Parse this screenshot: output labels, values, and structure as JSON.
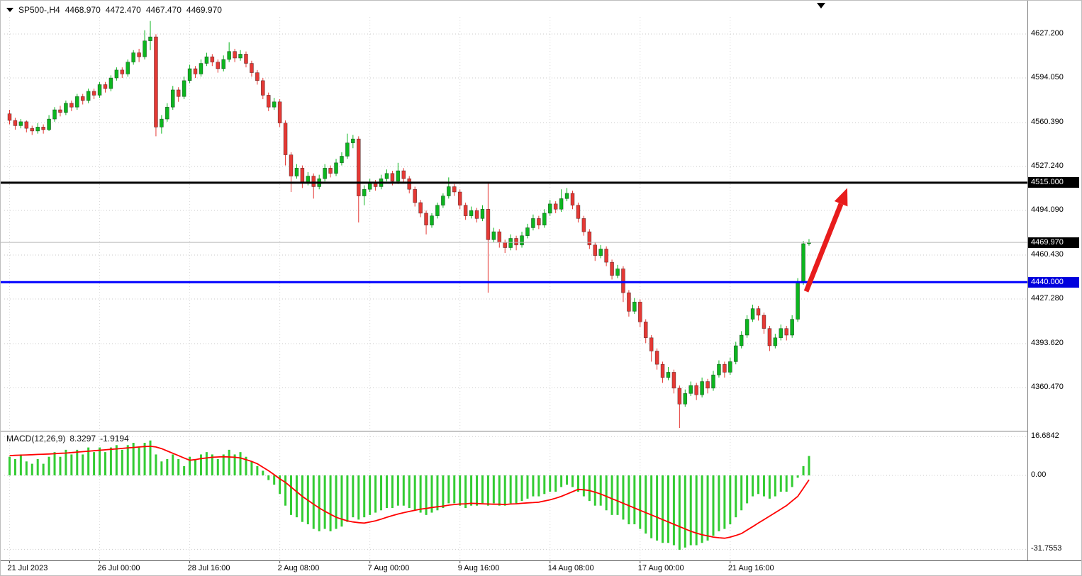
{
  "header": {
    "symbol_period": "SP500-,H4",
    "open": "4468.970",
    "high": "4472.470",
    "low": "4467.470",
    "close": "4469.970"
  },
  "macd": {
    "name": "MACD(12,26,9)",
    "value": "8.3297",
    "signal": "-1.9194"
  },
  "colors": {
    "candle_up": "#0cb51f",
    "candle_down": "#e53935",
    "macd_hist": "#33cc33",
    "macd_signal": "#ff0000",
    "grid": "#c9c9c9",
    "vgrid": "#d8d8d8",
    "resistance_line": "#000000",
    "support_line": "#0000ff",
    "current_price_line": "#b8b8b8",
    "arrow": "#e81c1c",
    "separator": "#808080",
    "axis_separator": "#5a5a5a",
    "badge_black": "#000000",
    "badge_blue": "#0000dd"
  },
  "price_axis": [
    {
      "label": "4627.200",
      "price": 4627.2
    },
    {
      "label": "4594.050",
      "price": 4594.05
    },
    {
      "label": "4560.390",
      "price": 4560.39
    },
    {
      "label": "4527.240",
      "price": 4527.24
    },
    {
      "label": "4515.000",
      "price": 4515.0,
      "badge_bg": "#000000",
      "line_color": "#000000",
      "line_width": 3
    },
    {
      "label": "4494.090",
      "price": 4494.09
    },
    {
      "label": "4469.970",
      "price": 4469.97,
      "badge_bg": "#000000",
      "line_color": "#b8b8b8",
      "line_width": 1
    },
    {
      "label": "4460.430",
      "price": 4460.43
    },
    {
      "label": "4440.000",
      "price": 4440.0,
      "badge_bg": "#0000dd",
      "line_color": "#0000ff",
      "line_width": 3
    },
    {
      "label": "4427.280",
      "price": 4427.28
    },
    {
      "label": "4393.620",
      "price": 4393.62
    },
    {
      "label": "4360.470",
      "price": 4360.47
    }
  ],
  "macd_axis": [
    {
      "label": "16.6842",
      "value": 16.6842
    },
    {
      "label": "0.00",
      "value": 0
    },
    {
      "label": "-31.7553",
      "value": -31.7553
    }
  ],
  "time_axis": [
    {
      "label": "21 Jul 2023",
      "bar": 0
    },
    {
      "label": "26 Jul 00:00",
      "bar": 16
    },
    {
      "label": "28 Jul 16:00",
      "bar": 32
    },
    {
      "label": "2 Aug 08:00",
      "bar": 48
    },
    {
      "label": "7 Aug 00:00",
      "bar": 64
    },
    {
      "label": "9 Aug 16:00",
      "bar": 80
    },
    {
      "label": "14 Aug 08:00",
      "bar": 96
    },
    {
      "label": "17 Aug 00:00",
      "bar": 112
    },
    {
      "label": "21 Aug 16:00",
      "bar": 128
    }
  ],
  "chart_data": {
    "type": "candlestick",
    "symbol": "SP500-",
    "timeframe": "H4",
    "title": "SP500-,H4 4468.970 4472.470 4467.470 4469.970",
    "last_ohlc": {
      "open": 4468.97,
      "high": 4472.47,
      "low": 4467.47,
      "close": 4469.97
    },
    "y_ticks": [
      4627.2,
      4594.05,
      4560.39,
      4527.24,
      4515.0,
      4494.09,
      4469.97,
      4460.43,
      4440.0,
      4427.28,
      4393.62,
      4360.47
    ],
    "x_ticks": [
      "21 Jul 2023",
      "26 Jul 00:00",
      "28 Jul 16:00",
      "2 Aug 08:00",
      "7 Aug 00:00",
      "9 Aug 16:00",
      "14 Aug 08:00",
      "17 Aug 00:00",
      "21 Aug 16:00"
    ],
    "ylim": [
      4330,
      4640
    ],
    "levels": {
      "resistance": 4515.0,
      "support": 4440.0,
      "current_price": 4469.97
    },
    "arrow": {
      "from": {
        "bar": 141.5,
        "price": 4433
      },
      "to": {
        "bar": 148.8,
        "price": 4511
      },
      "color": "#e81c1c",
      "stroke_width": 7
    },
    "candles": [
      [
        4567,
        4570,
        4559,
        4562
      ],
      [
        4562,
        4564,
        4555,
        4558
      ],
      [
        4558,
        4563,
        4556,
        4561
      ],
      [
        4561,
        4562,
        4553,
        4556
      ],
      [
        4556,
        4558,
        4551,
        4554
      ],
      [
        4554,
        4560,
        4552,
        4557
      ],
      [
        4557,
        4559,
        4552,
        4555
      ],
      [
        4555,
        4566,
        4554,
        4563
      ],
      [
        4563,
        4572,
        4561,
        4570
      ],
      [
        4570,
        4573,
        4565,
        4568
      ],
      [
        4568,
        4577,
        4566,
        4575
      ],
      [
        4575,
        4577,
        4569,
        4572
      ],
      [
        4572,
        4582,
        4570,
        4580
      ],
      [
        4580,
        4582,
        4574,
        4577
      ],
      [
        4577,
        4586,
        4575,
        4584
      ],
      [
        4584,
        4586,
        4578,
        4581
      ],
      [
        4581,
        4591,
        4579,
        4589
      ],
      [
        4589,
        4591,
        4583,
        4586
      ],
      [
        4586,
        4596,
        4584,
        4594
      ],
      [
        4594,
        4602,
        4592,
        4600
      ],
      [
        4600,
        4602,
        4594,
        4597
      ],
      [
        4597,
        4608,
        4595,
        4606
      ],
      [
        4606,
        4615,
        4604,
        4613
      ],
      [
        4613,
        4616,
        4606,
        4610
      ],
      [
        4610,
        4630,
        4608,
        4622
      ],
      [
        4622,
        4637,
        4615,
        4625
      ],
      [
        4625,
        4627,
        4550,
        4557
      ],
      [
        4557,
        4566,
        4552,
        4563
      ],
      [
        4563,
        4575,
        4561,
        4572
      ],
      [
        4572,
        4588,
        4570,
        4585
      ],
      [
        4585,
        4587,
        4576,
        4580
      ],
      [
        4580,
        4595,
        4578,
        4592
      ],
      [
        4592,
        4604,
        4590,
        4601
      ],
      [
        4601,
        4603,
        4594,
        4597
      ],
      [
        4597,
        4608,
        4595,
        4605
      ],
      [
        4605,
        4613,
        4603,
        4610
      ],
      [
        4610,
        4612,
        4603,
        4606
      ],
      [
        4606,
        4608,
        4598,
        4601
      ],
      [
        4601,
        4611,
        4599,
        4608
      ],
      [
        4608,
        4621,
        4606,
        4614
      ],
      [
        4614,
        4616,
        4606,
        4609
      ],
      [
        4609,
        4615,
        4607,
        4612
      ],
      [
        4612,
        4614,
        4602,
        4605
      ],
      [
        4605,
        4607,
        4595,
        4598
      ],
      [
        4598,
        4600,
        4589,
        4592
      ],
      [
        4592,
        4594,
        4578,
        4581
      ],
      [
        4581,
        4583,
        4569,
        4572
      ],
      [
        4572,
        4579,
        4570,
        4576
      ],
      [
        4576,
        4578,
        4557,
        4560
      ],
      [
        4560,
        4562,
        4528,
        4536
      ],
      [
        4536,
        4538,
        4508,
        4520
      ],
      [
        4520,
        4529,
        4518,
        4526
      ],
      [
        4526,
        4528,
        4511,
        4515
      ],
      [
        4515,
        4523,
        4513,
        4520
      ],
      [
        4520,
        4522,
        4503,
        4512
      ],
      [
        4512,
        4521,
        4510,
        4518
      ],
      [
        4518,
        4529,
        4516,
        4526
      ],
      [
        4526,
        4528,
        4519,
        4522
      ],
      [
        4522,
        4533,
        4520,
        4530
      ],
      [
        4530,
        4538,
        4528,
        4535
      ],
      [
        4535,
        4552,
        4533,
        4545
      ],
      [
        4545,
        4551,
        4541,
        4548
      ],
      [
        4548,
        4550,
        4485,
        4505
      ],
      [
        4505,
        4513,
        4498,
        4510
      ],
      [
        4510,
        4518,
        4508,
        4515
      ],
      [
        4515,
        4517,
        4509,
        4512
      ],
      [
        4512,
        4521,
        4510,
        4518
      ],
      [
        4518,
        4525,
        4516,
        4522
      ],
      [
        4522,
        4524,
        4513,
        4516
      ],
      [
        4516,
        4530,
        4514,
        4524
      ],
      [
        4524,
        4526,
        4515,
        4518
      ],
      [
        4518,
        4520,
        4507,
        4510
      ],
      [
        4510,
        4512,
        4497,
        4500
      ],
      [
        4500,
        4502,
        4489,
        4492
      ],
      [
        4492,
        4494,
        4476,
        4483
      ],
      [
        4483,
        4492,
        4481,
        4490
      ],
      [
        4490,
        4500,
        4488,
        4498
      ],
      [
        4498,
        4507,
        4496,
        4505
      ],
      [
        4505,
        4519,
        4503,
        4512
      ],
      [
        4512,
        4514,
        4505,
        4508
      ],
      [
        4508,
        4510,
        4495,
        4498
      ],
      [
        4498,
        4500,
        4487,
        4490
      ],
      [
        4490,
        4497,
        4488,
        4494
      ],
      [
        4494,
        4496,
        4485,
        4488
      ],
      [
        4488,
        4498,
        4486,
        4495
      ],
      [
        4495,
        4515,
        4432,
        4472
      ],
      [
        4472,
        4481,
        4470,
        4478
      ],
      [
        4478,
        4480,
        4466,
        4470
      ],
      [
        4470,
        4472,
        4462,
        4466
      ],
      [
        4466,
        4476,
        4464,
        4473
      ],
      [
        4473,
        4475,
        4464,
        4468
      ],
      [
        4468,
        4478,
        4466,
        4475
      ],
      [
        4475,
        4484,
        4473,
        4481
      ],
      [
        4481,
        4491,
        4479,
        4488
      ],
      [
        4488,
        4490,
        4480,
        4483
      ],
      [
        4483,
        4495,
        4481,
        4492
      ],
      [
        4492,
        4502,
        4490,
        4499
      ],
      [
        4499,
        4501,
        4492,
        4495
      ],
      [
        4495,
        4510,
        4493,
        4503
      ],
      [
        4503,
        4511,
        4501,
        4507
      ],
      [
        4507,
        4509,
        4495,
        4498
      ],
      [
        4498,
        4500,
        4485,
        4488
      ],
      [
        4488,
        4490,
        4475,
        4478
      ],
      [
        4478,
        4480,
        4465,
        4468
      ],
      [
        4468,
        4470,
        4456,
        4460
      ],
      [
        4460,
        4468,
        4458,
        4465
      ],
      [
        4465,
        4467,
        4452,
        4455
      ],
      [
        4455,
        4457,
        4442,
        4445
      ],
      [
        4445,
        4453,
        4443,
        4450
      ],
      [
        4450,
        4452,
        4425,
        4432
      ],
      [
        4432,
        4434,
        4414,
        4418
      ],
      [
        4418,
        4428,
        4416,
        4425
      ],
      [
        4425,
        4427,
        4406,
        4410
      ],
      [
        4410,
        4412,
        4394,
        4398
      ],
      [
        4398,
        4400,
        4380,
        4388
      ],
      [
        4388,
        4390,
        4374,
        4378
      ],
      [
        4378,
        4380,
        4364,
        4368
      ],
      [
        4368,
        4376,
        4366,
        4372
      ],
      [
        4372,
        4374,
        4356,
        4360
      ],
      [
        4360,
        4362,
        4330,
        4348
      ],
      [
        4348,
        4359,
        4346,
        4356
      ],
      [
        4356,
        4365,
        4354,
        4362
      ],
      [
        4362,
        4364,
        4351,
        4355
      ],
      [
        4355,
        4368,
        4353,
        4365
      ],
      [
        4365,
        4367,
        4356,
        4360
      ],
      [
        4360,
        4373,
        4358,
        4370
      ],
      [
        4370,
        4381,
        4368,
        4378
      ],
      [
        4378,
        4380,
        4368,
        4372
      ],
      [
        4372,
        4383,
        4370,
        4380
      ],
      [
        4380,
        4395,
        4378,
        4392
      ],
      [
        4392,
        4403,
        4390,
        4400
      ],
      [
        4400,
        4415,
        4398,
        4412
      ],
      [
        4412,
        4423,
        4410,
        4420
      ],
      [
        4420,
        4422,
        4411,
        4415
      ],
      [
        4415,
        4417,
        4401,
        4405
      ],
      [
        4405,
        4407,
        4388,
        4392
      ],
      [
        4392,
        4401,
        4390,
        4398
      ],
      [
        4398,
        4408,
        4396,
        4405
      ],
      [
        4405,
        4407,
        4396,
        4400
      ],
      [
        4400,
        4415,
        4398,
        4412
      ],
      [
        4412,
        4443,
        4410,
        4440
      ],
      [
        4440,
        4471,
        4438,
        4469
      ],
      [
        4468.97,
        4472.47,
        4467.47,
        4469.97
      ]
    ],
    "macd": {
      "params": "12,26,9",
      "macd_value": 8.3297,
      "signal_value": -1.9194,
      "y_ticks": [
        16.6842,
        0,
        -31.7553
      ],
      "hist": [
        8,
        7,
        9,
        6,
        5,
        7,
        5,
        8,
        10,
        8,
        11,
        9,
        11,
        9,
        12,
        10,
        12,
        10,
        12,
        13,
        11,
        13,
        14,
        12,
        14,
        15,
        9,
        6,
        7,
        9,
        7,
        4,
        8,
        7,
        9,
        10,
        9,
        7,
        9,
        11,
        9,
        10,
        8,
        6,
        4,
        2,
        -2,
        -4,
        -8,
        -13,
        -17,
        -18,
        -20,
        -21,
        -23,
        -24,
        -23,
        -24,
        -23,
        -22,
        -20,
        -18,
        -19,
        -18,
        -17,
        -16,
        -15,
        -14,
        -14,
        -13,
        -13,
        -14,
        -15,
        -16,
        -17,
        -16,
        -15,
        -14,
        -12,
        -12,
        -13,
        -14,
        -13,
        -13,
        -12,
        -13,
        -12,
        -13,
        -13,
        -12,
        -12,
        -11,
        -10,
        -9,
        -9,
        -8,
        -7,
        -7,
        -5,
        -4,
        -5,
        -7,
        -9,
        -11,
        -13,
        -13,
        -15,
        -17,
        -17,
        -19,
        -21,
        -21,
        -23,
        -25,
        -27,
        -28,
        -29,
        -29,
        -30,
        -32,
        -31,
        -30,
        -30,
        -29,
        -28,
        -26,
        -24,
        -23,
        -21,
        -18,
        -15,
        -12,
        -9,
        -8,
        -9,
        -10,
        -9,
        -7,
        -7,
        -5,
        -1,
        4,
        8.3297
      ],
      "signal": [
        8.5,
        8.6,
        8.7,
        8.8,
        8.9,
        9.0,
        9.1,
        9.2,
        9.3,
        9.5,
        9.6,
        9.8,
        10.0,
        10.2,
        10.4,
        10.6,
        10.8,
        11.0,
        11.2,
        11.4,
        11.6,
        11.8,
        12.0,
        12.2,
        12.4,
        12.5,
        12.2,
        11.5,
        10.5,
        9.5,
        8.5,
        7.5,
        6.5,
        6.8,
        7.2,
        7.5,
        7.8,
        7.9,
        8.0,
        7.9,
        7.8,
        7.5,
        6.8,
        6.0,
        5.0,
        3.5,
        2.0,
        0.3,
        -1.5,
        -3.0,
        -5.0,
        -7.0,
        -9.0,
        -10.7,
        -12.4,
        -14.0,
        -15.4,
        -16.7,
        -18.0,
        -18.8,
        -19.5,
        -20.0,
        -20.3,
        -20.5,
        -20.0,
        -19.5,
        -18.8,
        -18.0,
        -17.3,
        -16.6,
        -16.0,
        -15.5,
        -15.0,
        -14.5,
        -14.2,
        -13.8,
        -13.5,
        -13.2,
        -12.8,
        -12.5,
        -12.3,
        -12.2,
        -12.0,
        -12.1,
        -12.2,
        -12.3,
        -12.4,
        -12.4,
        -12.5,
        -12.3,
        -12.2,
        -12.0,
        -11.8,
        -11.7,
        -11.5,
        -11.0,
        -10.5,
        -9.8,
        -9.0,
        -8.0,
        -7.0,
        -6.0,
        -6.2,
        -6.5,
        -7.2,
        -8.0,
        -9.0,
        -10.0,
        -11.0,
        -12.0,
        -13.0,
        -14.0,
        -15.0,
        -16.0,
        -17.0,
        -18.0,
        -19.0,
        -20.0,
        -21.0,
        -22.0,
        -23.0,
        -24.0,
        -24.8,
        -25.5,
        -26.0,
        -26.5,
        -26.8,
        -27.0,
        -26.5,
        -25.8,
        -25.0,
        -23.5,
        -22.0,
        -20.5,
        -19.0,
        -17.5,
        -16.0,
        -14.5,
        -13.0,
        -11.0,
        -9.0,
        -5.5,
        -1.9194
      ]
    }
  }
}
